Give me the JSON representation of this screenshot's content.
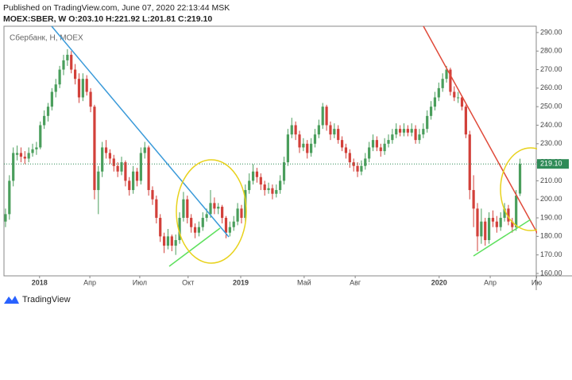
{
  "header": {
    "published": "Published on TradingView.com, June 07, 2020 22:13:44 MSK",
    "symbol": "MOEX:SBER, W O:203.10 H:221.92 L:201.81 C:219.10"
  },
  "chart_data": {
    "type": "candlestick",
    "title": "Сбербанк, Н, MOEX",
    "up_color": "#4a9e5c",
    "down_color": "#d2403a",
    "grid": false,
    "candles": [
      [
        188,
        195,
        185,
        192
      ],
      [
        192,
        213,
        189,
        210
      ],
      [
        210,
        228,
        207,
        225
      ],
      [
        224,
        229,
        221,
        225
      ],
      [
        225,
        228,
        220,
        223
      ],
      [
        223,
        226,
        219,
        222
      ],
      [
        222,
        228,
        220,
        225
      ],
      [
        225,
        230,
        223,
        227
      ],
      [
        227,
        231,
        224,
        228
      ],
      [
        228,
        242,
        227,
        240
      ],
      [
        240,
        248,
        238,
        245
      ],
      [
        245,
        252,
        242,
        250
      ],
      [
        250,
        260,
        248,
        258
      ],
      [
        258,
        265,
        255,
        262
      ],
      [
        262,
        272,
        260,
        270
      ],
      [
        270,
        278,
        267,
        275
      ],
      [
        275,
        281,
        272,
        278
      ],
      [
        278,
        280,
        268,
        270
      ],
      [
        270,
        273,
        262,
        265
      ],
      [
        265,
        268,
        252,
        255
      ],
      [
        255,
        268,
        253,
        265
      ],
      [
        265,
        267,
        256,
        258
      ],
      [
        258,
        260,
        247,
        250
      ],
      [
        250,
        251,
        200,
        205
      ],
      [
        205,
        218,
        192,
        215
      ],
      [
        215,
        231,
        212,
        228
      ],
      [
        228,
        232,
        222,
        225
      ],
      [
        225,
        227,
        219,
        222
      ],
      [
        222,
        224,
        215,
        218
      ],
      [
        218,
        220,
        212,
        215
      ],
      [
        215,
        223,
        213,
        220
      ],
      [
        220,
        221,
        207,
        210
      ],
      [
        210,
        212,
        202,
        205
      ],
      [
        205,
        218,
        203,
        215
      ],
      [
        215,
        217,
        207,
        210
      ],
      [
        210,
        228,
        208,
        225
      ],
      [
        225,
        231,
        222,
        228
      ],
      [
        228,
        229,
        202,
        205
      ],
      [
        205,
        207,
        197,
        200
      ],
      [
        200,
        202,
        187,
        190
      ],
      [
        190,
        192,
        177,
        180
      ],
      [
        180,
        182,
        171,
        175
      ],
      [
        175,
        184,
        173,
        180
      ],
      [
        180,
        181,
        172,
        175
      ],
      [
        175,
        181,
        170,
        178
      ],
      [
        178,
        193,
        176,
        190
      ],
      [
        190,
        204,
        188,
        200
      ],
      [
        200,
        202,
        187,
        190
      ],
      [
        190,
        192,
        182,
        185
      ],
      [
        185,
        187,
        179,
        182
      ],
      [
        182,
        188,
        180,
        185
      ],
      [
        185,
        193,
        183,
        190
      ],
      [
        190,
        195,
        188,
        192
      ],
      [
        192,
        205,
        190,
        198
      ],
      [
        198,
        201,
        192,
        195
      ],
      [
        195,
        198,
        192,
        196
      ],
      [
        196,
        197,
        187,
        190
      ],
      [
        190,
        191,
        179,
        182
      ],
      [
        182,
        188,
        180,
        185
      ],
      [
        185,
        191,
        183,
        188
      ],
      [
        188,
        198,
        186,
        195
      ],
      [
        195,
        197,
        187,
        190
      ],
      [
        190,
        208,
        188,
        205
      ],
      [
        205,
        214,
        203,
        210
      ],
      [
        210,
        219,
        208,
        215
      ],
      [
        215,
        217,
        209,
        212
      ],
      [
        212,
        214,
        205,
        208
      ],
      [
        208,
        210,
        202,
        205
      ],
      [
        205,
        209,
        203,
        206
      ],
      [
        206,
        208,
        200,
        203
      ],
      [
        203,
        208,
        201,
        205
      ],
      [
        205,
        213,
        203,
        210
      ],
      [
        210,
        223,
        208,
        220
      ],
      [
        220,
        238,
        218,
        235
      ],
      [
        235,
        244,
        233,
        240
      ],
      [
        240,
        242,
        232,
        235
      ],
      [
        235,
        237,
        225,
        228
      ],
      [
        228,
        233,
        226,
        230
      ],
      [
        230,
        232,
        222,
        225
      ],
      [
        225,
        233,
        223,
        230
      ],
      [
        230,
        238,
        228,
        235
      ],
      [
        235,
        243,
        233,
        240
      ],
      [
        240,
        252,
        238,
        250
      ],
      [
        250,
        251,
        237,
        240
      ],
      [
        240,
        242,
        232,
        235
      ],
      [
        235,
        241,
        233,
        238
      ],
      [
        238,
        240,
        230,
        232
      ],
      [
        232,
        234,
        226,
        228
      ],
      [
        228,
        230,
        222,
        225
      ],
      [
        225,
        227,
        217,
        220
      ],
      [
        220,
        222,
        215,
        218
      ],
      [
        218,
        220,
        212,
        215
      ],
      [
        215,
        221,
        213,
        218
      ],
      [
        218,
        225,
        216,
        222
      ],
      [
        222,
        231,
        220,
        228
      ],
      [
        228,
        235,
        226,
        232
      ],
      [
        232,
        234,
        226,
        228
      ],
      [
        228,
        230,
        223,
        226
      ],
      [
        226,
        233,
        224,
        230
      ],
      [
        230,
        235,
        228,
        232
      ],
      [
        232,
        238,
        230,
        235
      ],
      [
        235,
        241,
        233,
        238
      ],
      [
        238,
        240,
        234,
        236
      ],
      [
        236,
        241,
        234,
        238
      ],
      [
        238,
        240,
        234,
        236
      ],
      [
        236,
        241,
        234,
        238
      ],
      [
        238,
        240,
        230,
        232
      ],
      [
        232,
        238,
        230,
        235
      ],
      [
        235,
        241,
        233,
        238
      ],
      [
        238,
        248,
        236,
        245
      ],
      [
        245,
        253,
        243,
        250
      ],
      [
        250,
        258,
        248,
        255
      ],
      [
        255,
        263,
        253,
        260
      ],
      [
        260,
        268,
        258,
        265
      ],
      [
        265,
        272,
        263,
        270
      ],
      [
        270,
        271,
        256,
        258
      ],
      [
        258,
        261,
        253,
        255
      ],
      [
        255,
        258,
        252,
        255
      ],
      [
        255,
        256,
        248,
        250
      ],
      [
        250,
        251,
        233,
        235
      ],
      [
        235,
        237,
        200,
        205
      ],
      [
        205,
        213,
        185,
        195
      ],
      [
        195,
        198,
        172,
        180
      ],
      [
        180,
        195,
        176,
        188
      ],
      [
        188,
        190,
        175,
        178
      ],
      [
        178,
        193,
        176,
        190
      ],
      [
        190,
        194,
        185,
        188
      ],
      [
        188,
        191,
        182,
        185
      ],
      [
        185,
        193,
        183,
        190
      ],
      [
        190,
        198,
        188,
        195
      ],
      [
        195,
        197,
        186,
        188
      ],
      [
        188,
        190,
        182,
        185
      ],
      [
        185,
        205,
        183,
        202
      ],
      [
        203.1,
        221.92,
        201.81,
        219.1
      ]
    ],
    "xlim": [
      -0.4,
      137.2
    ],
    "xticks": [
      {
        "value": 8.8,
        "label": "2018"
      },
      {
        "value": 21.8,
        "label": "Апр"
      },
      {
        "value": 34.7,
        "label": "Июл"
      },
      {
        "value": 47.2,
        "label": "Окт"
      },
      {
        "value": 60.8,
        "label": "2019"
      },
      {
        "value": 77.2,
        "label": "Май"
      },
      {
        "value": 90.4,
        "label": "Авг"
      },
      {
        "value": 112.1,
        "label": "2020"
      },
      {
        "value": 125.3,
        "label": "Апр"
      },
      {
        "value": 137.3,
        "label": "Ию"
      }
    ],
    "ylim": [
      158.7,
      293.4
    ],
    "yticks": [
      {
        "value": 290,
        "label": "290.00"
      },
      {
        "value": 280,
        "label": "280.00"
      },
      {
        "value": 270,
        "label": "270.00"
      },
      {
        "value": 260,
        "label": "260.00"
      },
      {
        "value": 250,
        "label": "250.00"
      },
      {
        "value": 240,
        "label": "240.00"
      },
      {
        "value": 230,
        "label": "230.00"
      },
      {
        "value": 220,
        "label": "220.00"
      },
      {
        "value": 210,
        "label": "210.00"
      },
      {
        "value": 200,
        "label": "200.00"
      },
      {
        "value": 190,
        "label": "190.00"
      },
      {
        "value": 180,
        "label": "180.00"
      },
      {
        "value": 170,
        "label": "170.00"
      },
      {
        "value": 160,
        "label": "160.00"
      }
    ],
    "last_price": {
      "value": 219.1,
      "label": "219.10",
      "color": "#2e8b57"
    }
  },
  "footer": {
    "brand": "TradingView"
  }
}
